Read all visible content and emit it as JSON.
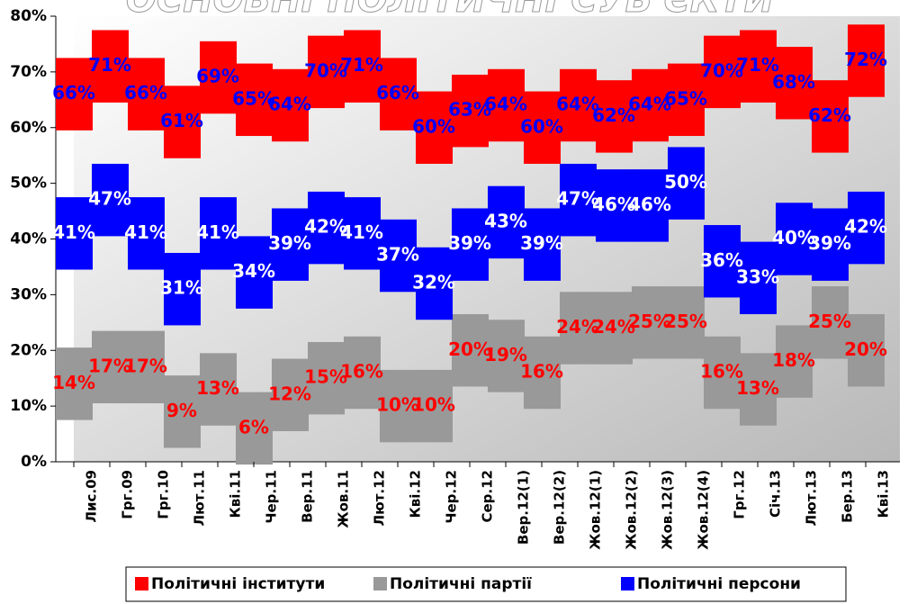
{
  "chart_data": {
    "type": "step-band",
    "title": "ОСНОВНІ ПОЛІТИЧНІ СУБ'ЄКТИ",
    "categories": [
      "Лис.09",
      "Грг.09",
      "Грг.10",
      "Лют.11",
      "Кві.11",
      "Чер.11",
      "Вер.11",
      "Жов.11",
      "Лют.12",
      "Кві.12",
      "Чер.12",
      "Сер.12",
      "Вер.12(1)",
      "Вер.12(2)",
      "Жов.12(1)",
      "Жов.12(2)",
      "Жов.12(3)",
      "Жов.12(4)",
      "Грг.12",
      "Січ.13",
      "Лют.13",
      "Бер.13",
      "Кві.13"
    ],
    "series": [
      {
        "name": "Політичні інститути",
        "color": "#ff0000",
        "label_color": "#0000ff",
        "values": [
          66,
          71,
          66,
          61,
          69,
          65,
          64,
          70,
          71,
          66,
          60,
          63,
          64,
          60,
          64,
          62,
          64,
          65,
          70,
          71,
          68,
          62,
          72
        ],
        "value_labels": [
          "66%",
          "71%",
          "66%",
          "61%",
          "69%",
          "65%",
          "64%",
          "70%",
          "71%",
          "66%",
          "60%",
          "63%",
          "64%",
          "60%",
          "64%",
          "62%",
          "64%",
          "65%",
          "70%",
          "71%",
          "68%",
          "62%",
          "72%"
        ]
      },
      {
        "name": "Політичні партії",
        "color": "#999999",
        "label_color": "#ff0000",
        "values": [
          14,
          17,
          17,
          9,
          13,
          6,
          12,
          15,
          16,
          10,
          10,
          20,
          19,
          16,
          24,
          24,
          25,
          25,
          16,
          13,
          18,
          25,
          20
        ],
        "value_labels": [
          "14%",
          "17%",
          "17%",
          "9%",
          "13%",
          "6%",
          "12%",
          "15%",
          "16%",
          "10%",
          "10%",
          "20%",
          "19%",
          "16%",
          "24%",
          "24%",
          "25%",
          "25%",
          "16%",
          "13%",
          "18%",
          "25%",
          "20%"
        ]
      },
      {
        "name": "Політичні персони",
        "color": "#0000ff",
        "label_color": "#ffffff",
        "values": [
          41,
          47,
          41,
          31,
          41,
          34,
          39,
          42,
          41,
          37,
          32,
          39,
          43,
          39,
          47,
          46,
          46,
          50,
          36,
          33,
          40,
          39,
          42
        ],
        "value_labels": [
          "41%",
          "47%",
          "41%",
          "31%",
          "41%",
          "34%",
          "39%",
          "42%",
          "41%",
          "37%",
          "32%",
          "39%",
          "43%",
          "39%",
          "47%",
          "46%",
          "46%",
          "50%",
          "36%",
          "33%",
          "40%",
          "39%",
          "42%"
        ]
      }
    ],
    "ylim": [
      0,
      80
    ],
    "yticks": [
      {
        "value": 0,
        "label": "0%"
      },
      {
        "value": 10,
        "label": "10%"
      },
      {
        "value": 20,
        "label": "20%"
      },
      {
        "value": 30,
        "label": "30%"
      },
      {
        "value": 40,
        "label": "40%"
      },
      {
        "value": 50,
        "label": "50%"
      },
      {
        "value": 60,
        "label": "60%"
      },
      {
        "value": 70,
        "label": "70%"
      },
      {
        "value": 80,
        "label": "80%"
      }
    ],
    "legend": "bottom"
  }
}
